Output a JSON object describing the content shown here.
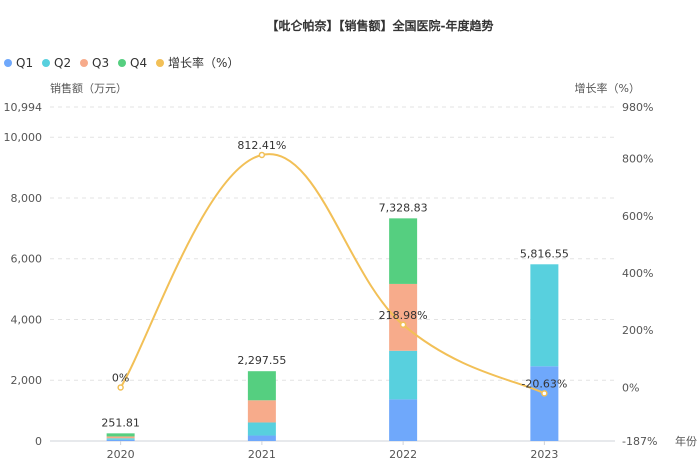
{
  "chart_data": {
    "type": "bar",
    "stacked": true,
    "title": "【吡仑帕奈】【销售额】全国医院-年度趋势",
    "xlabel": "年份",
    "ylabel": "销售额（万元）",
    "y2label": "增长率（%）",
    "categories": [
      "2020",
      "2021",
      "2022",
      "2023"
    ],
    "series": [
      {
        "name": "Q1",
        "color": "#6fa8fb",
        "values": [
          40,
          180,
          1370,
          2460
        ]
      },
      {
        "name": "Q2",
        "color": "#58d0de",
        "values": [
          50,
          430,
          1600,
          3356.55
        ]
      },
      {
        "name": "Q3",
        "color": "#f7ab8b",
        "values": [
          60,
          730,
          2200,
          0
        ]
      },
      {
        "name": "Q4",
        "color": "#55cf80",
        "values": [
          101.81,
          957.55,
          2158.83,
          0
        ]
      }
    ],
    "totals": [
      251.81,
      2297.55,
      7328.83,
      5816.55
    ],
    "total_labels": [
      "251.81",
      "2,297.55",
      "7,328.83",
      "5,816.55"
    ],
    "growth": {
      "name": "增长率（%）",
      "color": "#f2c057",
      "values": [
        0,
        812.41,
        218.98,
        -20.63
      ],
      "labels": [
        "0%",
        "812.41%",
        "218.98%",
        "-20.63%"
      ]
    },
    "ylim": [
      0,
      10994
    ],
    "yticks": [
      0,
      2000,
      4000,
      6000,
      8000,
      10000,
      10994
    ],
    "ytick_labels": [
      "0",
      "2,000",
      "4,000",
      "6,000",
      "8,000",
      "10,000",
      "10,994"
    ],
    "y2lim": [
      -187,
      980
    ],
    "y2ticks": [
      -187,
      0,
      200,
      400,
      600,
      800,
      980
    ],
    "y2tick_labels": [
      "-187%",
      "0%",
      "200%",
      "400%",
      "600%",
      "800%",
      "980%"
    ],
    "legend_position": "top-left",
    "grid": true
  }
}
